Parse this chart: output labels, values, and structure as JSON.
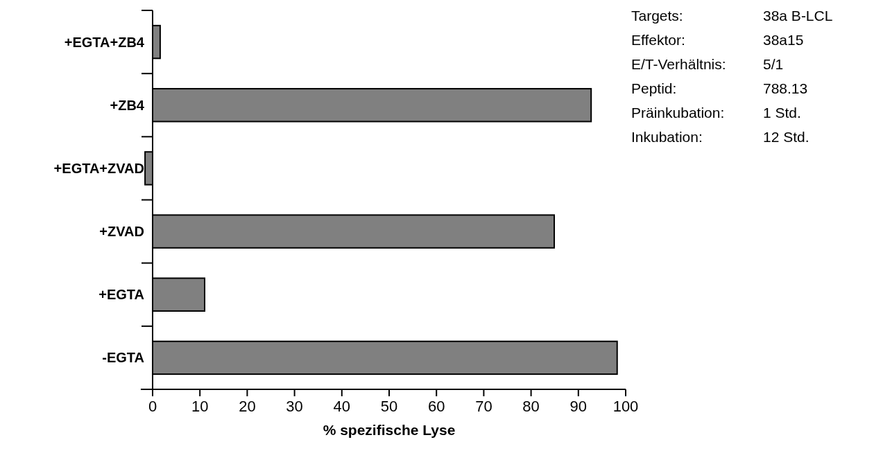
{
  "chart_data": {
    "type": "bar",
    "orientation": "horizontal",
    "categories": [
      "+EGTA+ZB4",
      "+ZB4",
      "+EGTA+ZVAD",
      "+ZVAD",
      "+EGTA",
      "-EGTA"
    ],
    "values": [
      1.6,
      92.7,
      -1.6,
      84.9,
      11.0,
      98.2
    ],
    "color": "#808080",
    "xlim": [
      -2.5,
      100
    ],
    "xticks": [
      0,
      10,
      20,
      30,
      40,
      50,
      60,
      70,
      80,
      90,
      100
    ],
    "xlabel": "% spezifische Lyse",
    "grid": false,
    "annotations": [
      "Targets:",
      "38a B-LCL",
      "Effektor:",
      "38a15",
      "E/T-Verhältnis:",
      "5/1",
      "Peptid:",
      "788.13",
      "Präinkubation:",
      "1 Std.",
      "Inkubation:",
      "12 Std."
    ]
  }
}
